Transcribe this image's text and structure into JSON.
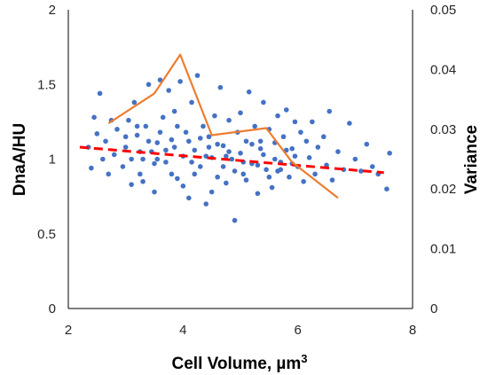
{
  "chart_data": {
    "type": "scatter",
    "xlabel": "Cell Volume, µm",
    "xlabel_superscript": "3",
    "ylabel": "DnaA/HU",
    "y2label": "Variance",
    "xlim": [
      2,
      8
    ],
    "ylim": [
      0,
      2
    ],
    "y2lim": [
      0,
      0.05
    ],
    "x_ticks": [
      "2",
      "4",
      "6",
      "8"
    ],
    "y_ticks": [
      "0",
      "0.5",
      "1",
      "1.5",
      "2"
    ],
    "y2_ticks": [
      "0",
      "0.01",
      "0.02",
      "0.03",
      "0.04",
      "0.05"
    ],
    "grid": false,
    "legend": false,
    "colors": {
      "scatter": "#4472C4",
      "trend": "#FF0000",
      "variance": "#ED7D31"
    },
    "series": [
      {
        "kind": "scatter",
        "axis": "left",
        "points": [
          [
            2.45,
            1.28
          ],
          [
            2.55,
            1.44
          ],
          [
            2.5,
            1.17
          ],
          [
            2.35,
            1.08
          ],
          [
            2.4,
            0.94
          ],
          [
            2.6,
            1.0
          ],
          [
            2.65,
            1.12
          ],
          [
            2.7,
            0.9
          ],
          [
            2.8,
            1.03
          ],
          [
            2.75,
            1.26
          ],
          [
            2.85,
            1.2
          ],
          [
            2.95,
            0.95
          ],
          [
            3.0,
            1.08
          ],
          [
            3.05,
            1.26
          ],
          [
            3.1,
            0.83
          ],
          [
            3.15,
            1.38
          ],
          [
            3.2,
            1.16
          ],
          [
            3.25,
            0.9
          ],
          [
            3.3,
            1.0
          ],
          [
            3.35,
            1.22
          ],
          [
            3.4,
            1.5
          ],
          [
            3.45,
            1.05
          ],
          [
            3.5,
            0.78
          ],
          [
            3.55,
            1.11
          ],
          [
            3.6,
            1.53
          ],
          [
            3.65,
            1.28
          ],
          [
            3.7,
            0.98
          ],
          [
            3.75,
            1.46
          ],
          [
            3.8,
            1.13
          ],
          [
            3.85,
            1.32
          ],
          [
            3.9,
            0.87
          ],
          [
            3.95,
            1.52
          ],
          [
            4.0,
            1.02
          ],
          [
            4.05,
            1.18
          ],
          [
            4.1,
            0.74
          ],
          [
            4.15,
            1.38
          ],
          [
            4.2,
            1.06
          ],
          [
            4.25,
            1.56
          ],
          [
            4.3,
            0.95
          ],
          [
            4.35,
            1.22
          ],
          [
            4.4,
            0.7
          ],
          [
            4.45,
            1.15
          ],
          [
            4.5,
            1.01
          ],
          [
            4.55,
            1.29
          ],
          [
            4.6,
            0.88
          ],
          [
            4.65,
            1.48
          ],
          [
            4.7,
            1.09
          ],
          [
            4.75,
            0.84
          ],
          [
            4.8,
            1.26
          ],
          [
            4.85,
            1.0
          ],
          [
            4.9,
            0.59
          ],
          [
            4.95,
            1.18
          ],
          [
            5.0,
            1.31
          ],
          [
            5.05,
            0.9
          ],
          [
            5.1,
            1.12
          ],
          [
            5.15,
            1.45
          ],
          [
            5.2,
            0.97
          ],
          [
            5.25,
            1.22
          ],
          [
            5.3,
            0.77
          ],
          [
            5.35,
            1.07
          ],
          [
            5.4,
            1.38
          ],
          [
            5.45,
            0.93
          ],
          [
            5.5,
            1.2
          ],
          [
            5.55,
            0.81
          ],
          [
            5.6,
            1.11
          ],
          [
            5.65,
            1.29
          ],
          [
            5.7,
            0.98
          ],
          [
            5.75,
            1.15
          ],
          [
            5.8,
            1.33
          ],
          [
            5.85,
            0.88
          ],
          [
            5.9,
            1.07
          ],
          [
            5.95,
            1.25
          ],
          [
            6.0,
            0.95
          ],
          [
            6.05,
            1.18
          ],
          [
            6.1,
            0.85
          ],
          [
            6.15,
            1.12
          ],
          [
            6.2,
            1.01
          ],
          [
            6.25,
            1.25
          ],
          [
            6.3,
            0.9
          ],
          [
            6.35,
            1.08
          ],
          [
            6.45,
            1.15
          ],
          [
            6.5,
            0.96
          ],
          [
            6.55,
            1.32
          ],
          [
            6.6,
            0.86
          ],
          [
            6.7,
            1.05
          ],
          [
            6.8,
            0.93
          ],
          [
            6.9,
            1.24
          ],
          [
            7.0,
            1.0
          ],
          [
            7.1,
            0.92
          ],
          [
            7.2,
            1.1
          ],
          [
            7.3,
            0.95
          ],
          [
            7.4,
            0.9
          ],
          [
            7.55,
            0.8
          ],
          [
            7.6,
            1.04
          ],
          [
            3.0,
            1.15
          ],
          [
            3.1,
            1.0
          ],
          [
            3.2,
            1.22
          ],
          [
            3.3,
            0.85
          ],
          [
            3.4,
            1.12
          ],
          [
            3.5,
            0.97
          ],
          [
            3.6,
            1.18
          ],
          [
            3.7,
            1.06
          ],
          [
            3.8,
            0.9
          ],
          [
            3.9,
            1.22
          ],
          [
            4.0,
            0.82
          ],
          [
            4.1,
            1.12
          ],
          [
            4.2,
            0.9
          ],
          [
            4.3,
            1.14
          ],
          [
            4.4,
            1.02
          ],
          [
            4.5,
            0.78
          ],
          [
            4.6,
            1.1
          ],
          [
            4.7,
            0.95
          ],
          [
            4.8,
            1.05
          ],
          [
            4.9,
            0.92
          ],
          [
            5.0,
            1.04
          ],
          [
            5.1,
            0.86
          ],
          [
            5.2,
            1.1
          ],
          [
            5.3,
            0.96
          ],
          [
            5.4,
            1.03
          ],
          [
            5.5,
            0.88
          ],
          [
            5.6,
            1.0
          ],
          [
            5.7,
            0.93
          ],
          [
            5.8,
            1.06
          ],
          [
            5.9,
            0.97
          ],
          [
            3.25,
            1.05
          ],
          [
            3.55,
            1.0
          ],
          [
            3.85,
            1.08
          ],
          [
            4.15,
            0.98
          ],
          [
            4.45,
            1.08
          ],
          [
            4.75,
            1.02
          ],
          [
            5.05,
            0.98
          ],
          [
            5.35,
            1.12
          ],
          [
            5.65,
            0.92
          ],
          [
            5.95,
            1.02
          ]
        ]
      },
      {
        "kind": "line",
        "style": "dashed",
        "axis": "left",
        "points": [
          [
            2.2,
            1.08
          ],
          [
            7.5,
            0.91
          ]
        ]
      },
      {
        "kind": "line",
        "style": "solid",
        "axis": "right",
        "points": [
          [
            2.7,
            0.031
          ],
          [
            3.5,
            0.036
          ],
          [
            3.95,
            0.0425
          ],
          [
            4.5,
            0.029
          ],
          [
            5.45,
            0.0302
          ],
          [
            5.9,
            0.0245
          ],
          [
            6.7,
            0.0185
          ]
        ]
      }
    ]
  }
}
